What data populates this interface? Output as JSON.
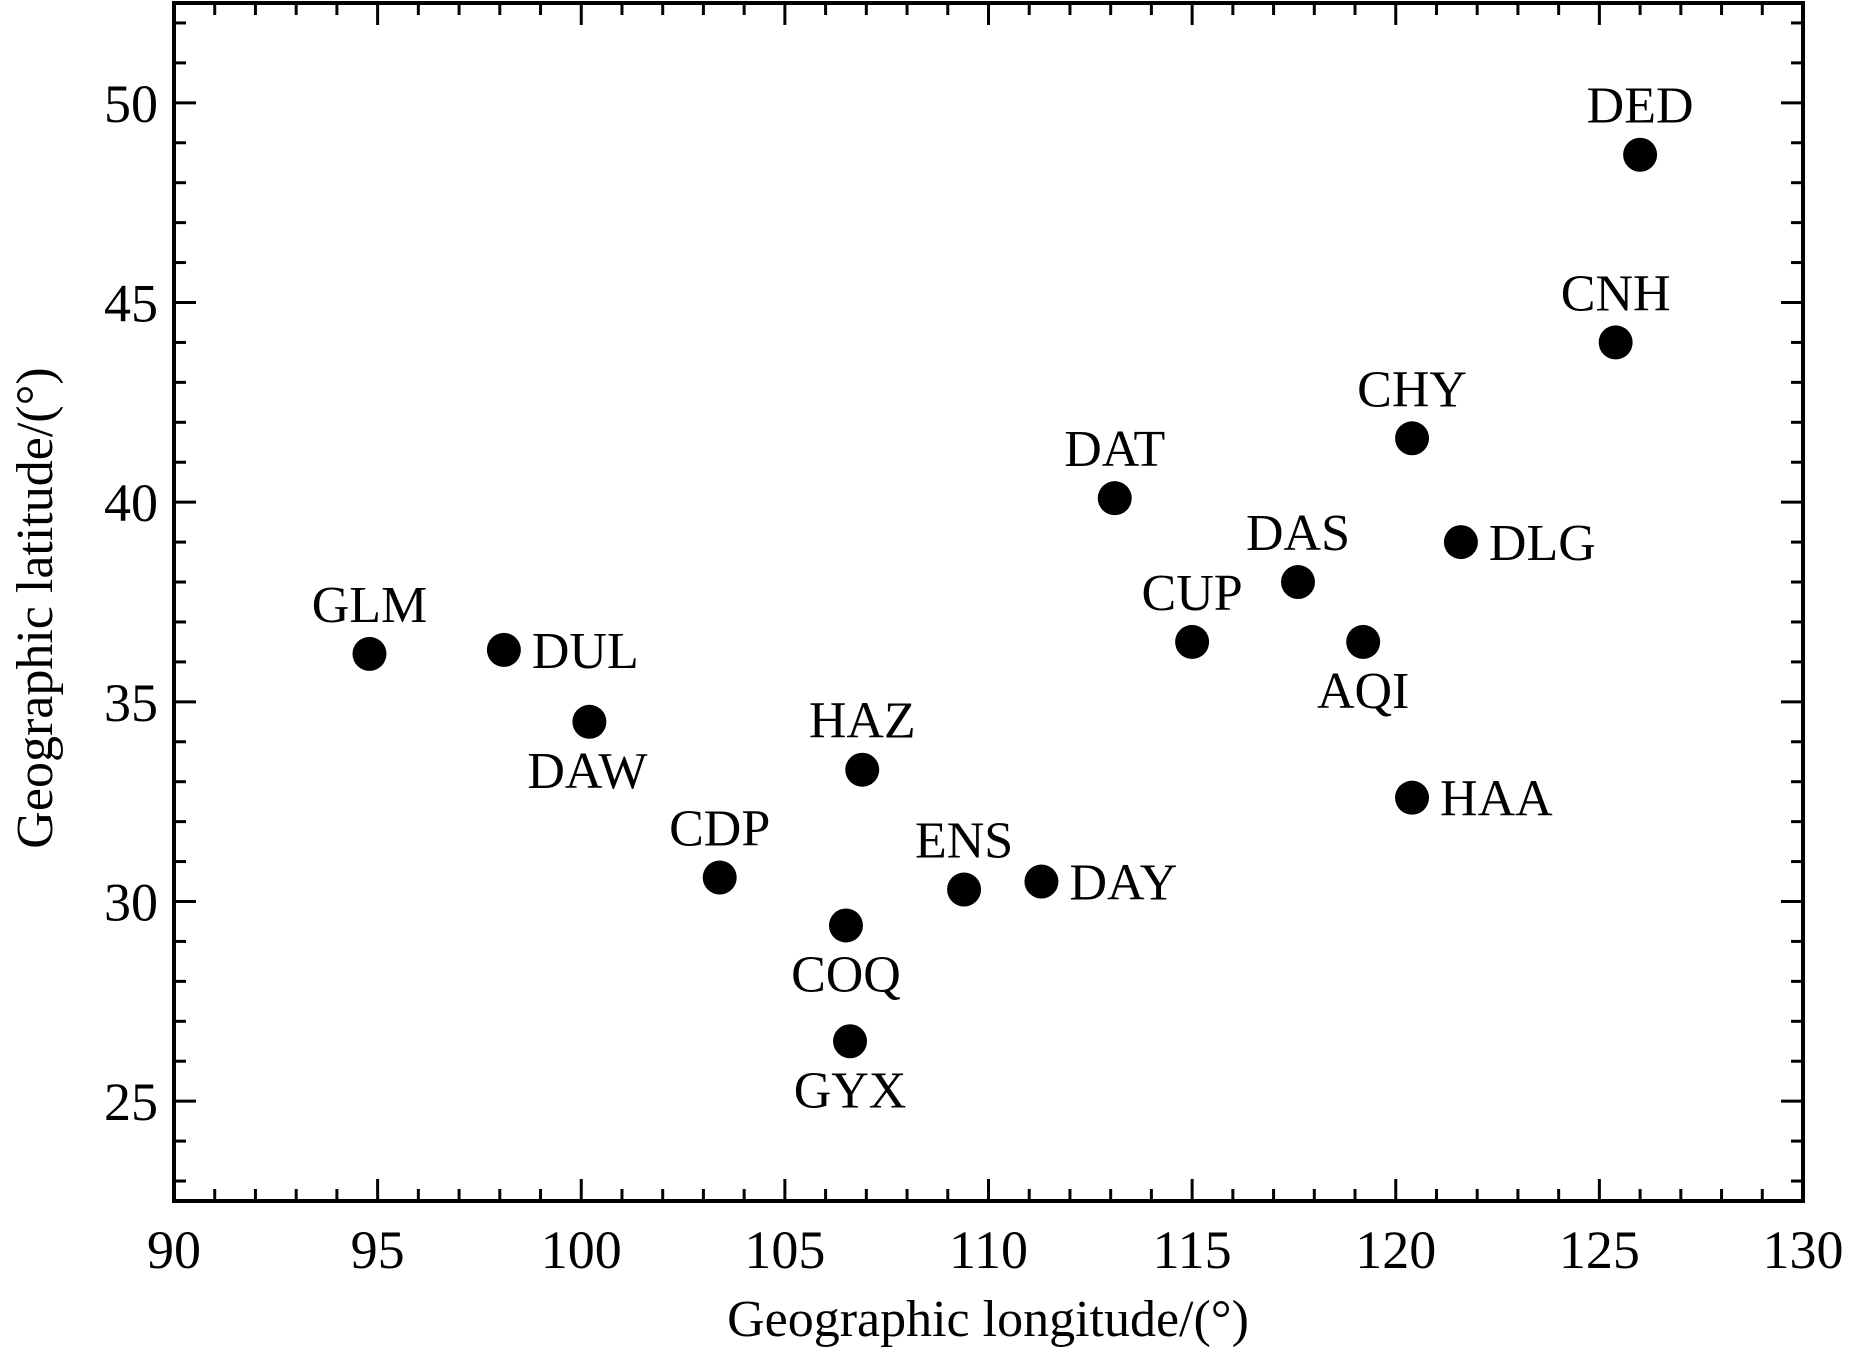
{
  "chart_data": {
    "type": "scatter",
    "title": "",
    "xlabel": "Geographic longitude/(°)",
    "ylabel": "Geographic latitude/(°)",
    "xlim": [
      90,
      130
    ],
    "ylim": [
      22.5,
      52.5
    ],
    "xticks": [
      "90",
      "95",
      "100",
      "105",
      "110",
      "115",
      "120",
      "125",
      "130"
    ],
    "yticks": [
      "25",
      "30",
      "35",
      "40",
      "45",
      "50"
    ],
    "grid": false,
    "marker_color": "#000000",
    "points": [
      {
        "label": "DED",
        "x": 126.0,
        "y": 48.7,
        "label_pos": "above"
      },
      {
        "label": "CNH",
        "x": 125.4,
        "y": 44.0,
        "label_pos": "above"
      },
      {
        "label": "CHY",
        "x": 120.4,
        "y": 41.6,
        "label_pos": "above"
      },
      {
        "label": "DAT",
        "x": 113.1,
        "y": 40.1,
        "label_pos": "above"
      },
      {
        "label": "DLG",
        "x": 121.6,
        "y": 39.0,
        "label_pos": "right"
      },
      {
        "label": "DAS",
        "x": 117.6,
        "y": 38.0,
        "label_pos": "above"
      },
      {
        "label": "CUP",
        "x": 115.0,
        "y": 36.5,
        "label_pos": "above"
      },
      {
        "label": "AQI",
        "x": 119.2,
        "y": 36.5,
        "label_pos": "below"
      },
      {
        "label": "GLM",
        "x": 94.8,
        "y": 36.2,
        "label_pos": "above"
      },
      {
        "label": "DUL",
        "x": 98.1,
        "y": 36.3,
        "label_pos": "right"
      },
      {
        "label": "DAW",
        "x": 100.2,
        "y": 34.5,
        "label_pos": "below-left"
      },
      {
        "label": "HAZ",
        "x": 106.9,
        "y": 33.3,
        "label_pos": "above"
      },
      {
        "label": "HAA",
        "x": 120.4,
        "y": 32.6,
        "label_pos": "right"
      },
      {
        "label": "CDP",
        "x": 103.4,
        "y": 30.6,
        "label_pos": "above"
      },
      {
        "label": "DAY",
        "x": 111.3,
        "y": 30.5,
        "label_pos": "right"
      },
      {
        "label": "ENS",
        "x": 109.4,
        "y": 30.3,
        "label_pos": "above"
      },
      {
        "label": "COQ",
        "x": 106.5,
        "y": 29.4,
        "label_pos": "below"
      },
      {
        "label": "GYX",
        "x": 106.6,
        "y": 26.5,
        "label_pos": "below"
      }
    ]
  }
}
